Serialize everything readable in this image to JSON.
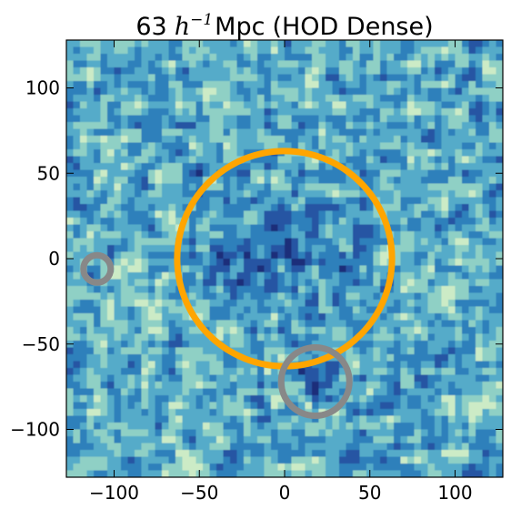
{
  "chart_data": {
    "type": "heatmap",
    "title": {
      "value": "63",
      "symbol": "h",
      "exponent": "−1",
      "unit": "Mpc",
      "sample": "(HOD Dense)"
    },
    "xlabel": "",
    "ylabel": "",
    "xlim": [
      -128,
      128
    ],
    "ylim": [
      -128,
      128
    ],
    "xticks": [
      -100,
      -50,
      0,
      50,
      100
    ],
    "yticks": [
      -100,
      -50,
      0,
      50,
      100
    ],
    "xtick_labels": [
      "−100",
      "−50",
      "0",
      "50",
      "100"
    ],
    "ytick_labels": [
      "−100",
      "−50",
      "0",
      "50",
      "100"
    ],
    "grid": false,
    "colormap": [
      "#1b2f7a",
      "#2554a3",
      "#2f80bb",
      "#55abc9",
      "#8fd0c5",
      "#ccebc6",
      "#f4fbd6"
    ],
    "circles": [
      {
        "name": "main-void",
        "cx": 0,
        "cy": 0,
        "r": 63,
        "color": "#ffa500"
      },
      {
        "name": "void-left",
        "cx": -110,
        "cy": -6,
        "r": 8,
        "color": "#888888"
      },
      {
        "name": "void-bottom",
        "cx": 18,
        "cy": -72,
        "r": 20,
        "color": "#888888"
      }
    ]
  }
}
